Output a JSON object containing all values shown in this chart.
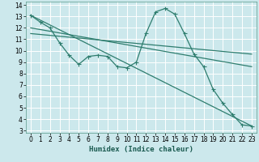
{
  "xlabel": "Humidex (Indice chaleur)",
  "background_color": "#cce8ec",
  "grid_color": "#ffffff",
  "line_color": "#2e7d6e",
  "xlim": [
    -0.5,
    23.5
  ],
  "ylim": [
    2.8,
    14.3
  ],
  "xticks": [
    0,
    1,
    2,
    3,
    4,
    5,
    6,
    7,
    8,
    9,
    10,
    11,
    12,
    13,
    14,
    15,
    16,
    17,
    18,
    19,
    20,
    21,
    22,
    23
  ],
  "yticks": [
    3,
    4,
    5,
    6,
    7,
    8,
    9,
    10,
    11,
    12,
    13,
    14
  ],
  "line1_x": [
    0,
    1,
    2,
    3,
    4,
    5,
    6,
    7,
    8,
    9,
    10,
    11,
    12,
    13,
    14,
    15,
    16,
    17,
    18,
    19,
    20,
    21,
    22,
    23
  ],
  "line1_y": [
    13.1,
    12.5,
    12.0,
    10.7,
    9.6,
    8.8,
    9.5,
    9.6,
    9.5,
    8.6,
    8.5,
    9.0,
    11.5,
    13.4,
    13.7,
    13.2,
    11.5,
    9.7,
    8.6,
    6.6,
    5.4,
    4.4,
    3.5,
    3.4
  ],
  "line2_x": [
    0,
    23
  ],
  "line2_y": [
    13.1,
    3.4
  ],
  "line3_x": [
    0,
    23
  ],
  "line3_y": [
    12.0,
    8.6
  ],
  "line4_x": [
    0,
    23
  ],
  "line4_y": [
    11.5,
    9.7
  ],
  "xlabel_fontsize": 6.5,
  "tick_fontsize": 5.5
}
